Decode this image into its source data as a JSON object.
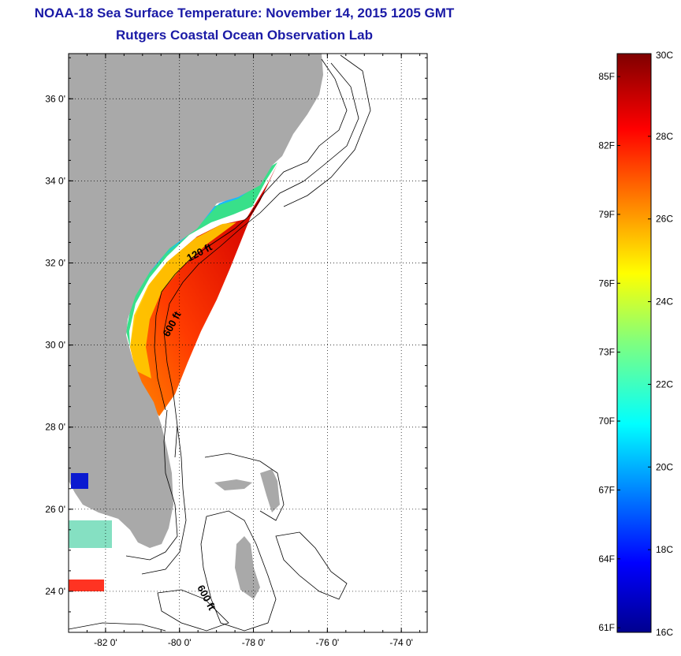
{
  "title": "NOAA-18 Sea Surface Temperature:  November 14, 2015 1205 GMT",
  "subtitle": "Rutgers Coastal Ocean Observation Lab",
  "map": {
    "lon_range": [
      -83,
      -73.3
    ],
    "lat_range": [
      23,
      37.1
    ],
    "lon_ticks": [
      {
        "value": -82,
        "label": "-82 0'"
      },
      {
        "value": -80,
        "label": "-80 0'"
      },
      {
        "value": -78,
        "label": "-78 0'"
      },
      {
        "value": -76,
        "label": "-76 0'"
      },
      {
        "value": -74,
        "label": "-74 0'"
      }
    ],
    "lat_ticks": [
      {
        "value": 36,
        "label": "36 0'"
      },
      {
        "value": 34,
        "label": "34 0'"
      },
      {
        "value": 32,
        "label": "32 0'"
      },
      {
        "value": 30,
        "label": "30 0'"
      },
      {
        "value": 28,
        "label": "28 0'"
      },
      {
        "value": 26,
        "label": "26 0'"
      },
      {
        "value": 24,
        "label": "24 0'"
      }
    ],
    "contour_labels": [
      "120 ft",
      "600 ft",
      "600 ft"
    ],
    "land_color": "#a9a9a9",
    "gridlines": "dotted"
  },
  "colorbar": {
    "range_c": [
      16,
      30
    ],
    "celsius_labels": [
      "30C",
      "28C",
      "26C",
      "24C",
      "22C",
      "20C",
      "18C",
      "16C"
    ],
    "fahrenheit_labels": [
      "85F",
      "82F",
      "79F",
      "76F",
      "73F",
      "70F",
      "67F",
      "64F",
      "61F"
    ],
    "colormap": "jet"
  }
}
